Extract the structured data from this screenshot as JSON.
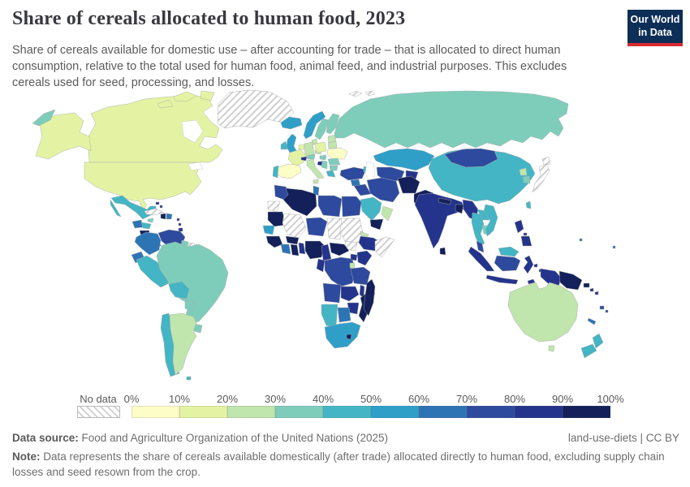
{
  "header": {
    "title": "Share of cereals allocated to human food, 2023",
    "subtitle": "Share of cereals available for domestic use – after accounting for trade – that is allocated to direct human consumption, relative to the total used for human food, animal feed, and industrial purposes. This excludes cereals used for seed, processing, and losses."
  },
  "logo": {
    "line1": "Our World",
    "line2": "in Data",
    "navy": "#0d2e57",
    "red": "#d8292f"
  },
  "legend": {
    "no_data_label": "No data"
  },
  "footer": {
    "data_source_label": "Data source:",
    "data_source_text": "Food and Agriculture Organization of the United Nations (2025)",
    "attribution": "land-use-diets | CC BY",
    "note_label": "Note:",
    "note_text": "Data represents the share of cereals available domestically (after trade) allocated directly to human food, excluding supply chain losses and seed resown from the crop."
  },
  "chart_data": {
    "type": "choropleth",
    "title": "Share of cereals allocated to human food, 2023",
    "year": 2023,
    "unit": "%",
    "bin_labels": [
      "0%",
      "10%",
      "20%",
      "30%",
      "40%",
      "50%",
      "60%",
      "70%",
      "80%",
      "90%",
      "100%"
    ],
    "palette": [
      "#fdfdc8",
      "#e4f3a3",
      "#c0e5ad",
      "#7ecdba",
      "#44b5c4",
      "#2f9fc8",
      "#2d74b5",
      "#2e4a9e",
      "#24348c",
      "#13205a"
    ],
    "no_data": {
      "label": "No data",
      "pattern": "diagonal-hatch",
      "hatch_color": "#cfcfcf"
    },
    "regions": [
      {
        "id": "canada",
        "bin": 1
      },
      {
        "id": "canadian-arctic",
        "bin": 1
      },
      {
        "id": "alaska",
        "bin": 1
      },
      {
        "id": "chukotka",
        "bin": 3
      },
      {
        "id": "greenland",
        "bin": null
      },
      {
        "id": "svalbard",
        "bin": null
      },
      {
        "id": "iceland",
        "bin": 5
      },
      {
        "id": "united-states",
        "bin": 1
      },
      {
        "id": "mexico",
        "bin": 4
      },
      {
        "id": "guatemala",
        "bin": 6
      },
      {
        "id": "honduras",
        "bin": 4
      },
      {
        "id": "nicaragua",
        "bin": 9
      },
      {
        "id": "costa-rica",
        "bin": 6
      },
      {
        "id": "panama",
        "bin": 5
      },
      {
        "id": "cuba",
        "bin": null
      },
      {
        "id": "jamaica",
        "bin": 3
      },
      {
        "id": "haiti",
        "bin": 9
      },
      {
        "id": "dominican-republic",
        "bin": 6
      },
      {
        "id": "bahamas",
        "bin": 8
      },
      {
        "id": "lesser-antilles",
        "bin": 8
      },
      {
        "id": "trinidad-and-tobago",
        "bin": 8
      },
      {
        "id": "colombia",
        "bin": 6
      },
      {
        "id": "venezuela",
        "bin": 7
      },
      {
        "id": "guyana",
        "bin": 3
      },
      {
        "id": "suriname",
        "bin": null
      },
      {
        "id": "french-guiana",
        "bin": 3
      },
      {
        "id": "ecuador",
        "bin": 6
      },
      {
        "id": "peru",
        "bin": 4
      },
      {
        "id": "brazil",
        "bin": 3
      },
      {
        "id": "bolivia",
        "bin": 4
      },
      {
        "id": "paraguay",
        "bin": 3
      },
      {
        "id": "uruguay",
        "bin": 3
      },
      {
        "id": "chile",
        "bin": 4
      },
      {
        "id": "argentina",
        "bin": 2
      },
      {
        "id": "falkland-islands",
        "bin": 4
      },
      {
        "id": "norway",
        "bin": 5
      },
      {
        "id": "sweden",
        "bin": 3
      },
      {
        "id": "finland",
        "bin": 3
      },
      {
        "id": "baltics",
        "bin": 2
      },
      {
        "id": "denmark",
        "bin": 2
      },
      {
        "id": "united-kingdom",
        "bin": 5
      },
      {
        "id": "ireland",
        "bin": 4
      },
      {
        "id": "benelux",
        "bin": 1
      },
      {
        "id": "germany",
        "bin": 2
      },
      {
        "id": "france",
        "bin": 1
      },
      {
        "id": "spain",
        "bin": 0
      },
      {
        "id": "portugal",
        "bin": 4
      },
      {
        "id": "italy",
        "bin": 2
      },
      {
        "id": "switzerland",
        "bin": 8
      },
      {
        "id": "austria",
        "bin": 3
      },
      {
        "id": "czechia",
        "bin": 2
      },
      {
        "id": "poland",
        "bin": 1
      },
      {
        "id": "belarus",
        "bin": 2
      },
      {
        "id": "ukraine",
        "bin": 0
      },
      {
        "id": "hungary",
        "bin": 3
      },
      {
        "id": "romania",
        "bin": 3
      },
      {
        "id": "balkans",
        "bin": 3
      },
      {
        "id": "bosnia",
        "bin": 8
      },
      {
        "id": "bulgaria",
        "bin": 3
      },
      {
        "id": "greece",
        "bin": 4
      },
      {
        "id": "turkey",
        "bin": 7
      },
      {
        "id": "caucasus",
        "bin": 4
      },
      {
        "id": "russia",
        "bin": 3
      },
      {
        "id": "kazakhstan",
        "bin": 5
      },
      {
        "id": "uzbekistan-turkmenistan",
        "bin": 7
      },
      {
        "id": "kyrgyzstan-tajikistan",
        "bin": 8
      },
      {
        "id": "syria",
        "bin": 6
      },
      {
        "id": "iraq",
        "bin": 7
      },
      {
        "id": "iran",
        "bin": 7
      },
      {
        "id": "afghanistan",
        "bin": 9
      },
      {
        "id": "pakistan",
        "bin": 9
      },
      {
        "id": "saudi-arabia",
        "bin": 4
      },
      {
        "id": "yemen",
        "bin": 9
      },
      {
        "id": "oman",
        "bin": 2
      },
      {
        "id": "india",
        "bin": 8
      },
      {
        "id": "nepal",
        "bin": 9
      },
      {
        "id": "bangladesh",
        "bin": 9
      },
      {
        "id": "sri-lanka",
        "bin": 9
      },
      {
        "id": "myanmar",
        "bin": 8
      },
      {
        "id": "laos",
        "bin": 4
      },
      {
        "id": "thailand",
        "bin": 4
      },
      {
        "id": "cambodia",
        "bin": 3
      },
      {
        "id": "vietnam",
        "bin": 4
      },
      {
        "id": "malaysia",
        "bin": 7
      },
      {
        "id": "sumatra",
        "bin": 8
      },
      {
        "id": "java",
        "bin": 8
      },
      {
        "id": "borneo-malaysia",
        "bin": 4
      },
      {
        "id": "borneo-indonesia",
        "bin": 7
      },
      {
        "id": "sulawesi",
        "bin": 8
      },
      {
        "id": "philippines",
        "bin": 8
      },
      {
        "id": "maluku",
        "bin": 8
      },
      {
        "id": "timor",
        "bin": 8
      },
      {
        "id": "new-guinea-indonesia",
        "bin": 8
      },
      {
        "id": "papua-new-guinea",
        "bin": 9
      },
      {
        "id": "solomon-islands",
        "bin": 8
      },
      {
        "id": "china",
        "bin": 4
      },
      {
        "id": "mongolia",
        "bin": 7
      },
      {
        "id": "north-korea",
        "bin": 2
      },
      {
        "id": "south-korea",
        "bin": 3
      },
      {
        "id": "japan",
        "bin": null
      },
      {
        "id": "taiwan",
        "bin": 4
      },
      {
        "id": "morocco",
        "bin": 7
      },
      {
        "id": "western-sahara",
        "bin": null
      },
      {
        "id": "algeria",
        "bin": 9
      },
      {
        "id": "tunisia",
        "bin": 6
      },
      {
        "id": "libya",
        "bin": 7
      },
      {
        "id": "egypt",
        "bin": 7
      },
      {
        "id": "mauritania",
        "bin": 9
      },
      {
        "id": "mali",
        "bin": null
      },
      {
        "id": "niger",
        "bin": 7
      },
      {
        "id": "chad",
        "bin": null
      },
      {
        "id": "sudan",
        "bin": null
      },
      {
        "id": "south-sudan",
        "bin": null
      },
      {
        "id": "eritrea",
        "bin": 2
      },
      {
        "id": "ethiopia",
        "bin": 8
      },
      {
        "id": "somalia",
        "bin": null
      },
      {
        "id": "senegal",
        "bin": 5
      },
      {
        "id": "guinea",
        "bin": 9
      },
      {
        "id": "cote-divoire",
        "bin": 6
      },
      {
        "id": "ghana",
        "bin": 9
      },
      {
        "id": "burkina-faso",
        "bin": 9
      },
      {
        "id": "togo-benin",
        "bin": 8
      },
      {
        "id": "nigeria",
        "bin": 9
      },
      {
        "id": "cameroon",
        "bin": 8
      },
      {
        "id": "central-african-republic",
        "bin": 9
      },
      {
        "id": "congo-gabon",
        "bin": 8
      },
      {
        "id": "democratic-republic-of-congo",
        "bin": 7
      },
      {
        "id": "uganda",
        "bin": 8
      },
      {
        "id": "kenya",
        "bin": 8
      },
      {
        "id": "rwanda-burundi",
        "bin": 2
      },
      {
        "id": "tanzania",
        "bin": 7
      },
      {
        "id": "angola",
        "bin": 7
      },
      {
        "id": "zambia",
        "bin": 8
      },
      {
        "id": "malawi",
        "bin": 8
      },
      {
        "id": "mozambique",
        "bin": 9
      },
      {
        "id": "zimbabwe",
        "bin": 8
      },
      {
        "id": "namibia",
        "bin": 4
      },
      {
        "id": "botswana",
        "bin": 6
      },
      {
        "id": "south-africa",
        "bin": 5
      },
      {
        "id": "lesotho",
        "bin": 9
      },
      {
        "id": "madagascar",
        "bin": 9
      },
      {
        "id": "australia",
        "bin": 2
      },
      {
        "id": "tasmania",
        "bin": 2
      },
      {
        "id": "new-zealand",
        "bin": 4
      },
      {
        "id": "fiji",
        "bin": 7
      },
      {
        "id": "new-caledonia",
        "bin": 6
      },
      {
        "id": "micronesia",
        "bin": 6
      }
    ]
  }
}
